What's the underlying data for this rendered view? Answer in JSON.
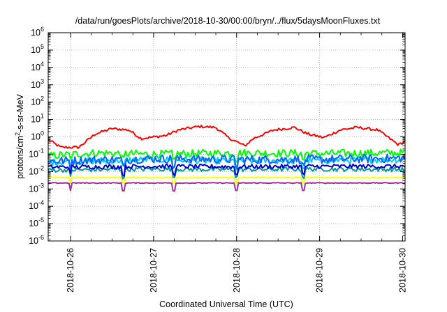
{
  "chart_data": {
    "type": "line",
    "title": "/data/run/goesPlots/archive/2018-10-30/00:00/bryn/../flux/5daysMoonFluxes.txt",
    "xlabel": "Coordinated Universal Time (UTC)",
    "ylabel": {
      "base": "protons/cm",
      "sup": "2",
      "rest": "-s-sr-MeV"
    },
    "x_ticks": [
      "2018-10-26",
      "2018-10-27",
      "2018-10-28",
      "2018-10-29",
      "2018-10-30"
    ],
    "x_range_days": [
      -0.27,
      4.03
    ],
    "y_scale": "log",
    "ylim": [
      1e-06,
      1000000.0
    ],
    "y_ticks": [
      {
        "exp": "-6",
        "value": 1e-06
      },
      {
        "exp": "-5",
        "value": 1e-05
      },
      {
        "exp": "-4",
        "value": 0.0001
      },
      {
        "exp": "-3",
        "value": 0.001
      },
      {
        "exp": "-2",
        "value": 0.01
      },
      {
        "exp": "-1",
        "value": 0.1
      },
      {
        "exp": "0",
        "value": 1
      },
      {
        "exp": "1",
        "value": 10
      },
      {
        "exp": "2",
        "value": 100
      },
      {
        "exp": "3",
        "value": 1000
      },
      {
        "exp": "4",
        "value": 10000
      },
      {
        "exp": "5",
        "value": 100000
      },
      {
        "exp": "6",
        "value": 1000000
      }
    ],
    "grid": true,
    "dips_days": [
      -0.52,
      0.0,
      0.64,
      1.25,
      2.0,
      2.8
    ],
    "series": [
      {
        "color": "#ff0000",
        "base": [
          [
            -0.27,
            0.7
          ],
          [
            -0.12,
            0.25
          ],
          [
            0.1,
            0.25
          ],
          [
            0.3,
            1.5
          ],
          [
            0.5,
            3.0
          ],
          [
            0.7,
            2.5
          ],
          [
            0.85,
            0.8
          ],
          [
            1.15,
            1.2
          ],
          [
            1.3,
            2.5
          ],
          [
            1.55,
            4.0
          ],
          [
            1.75,
            3.5
          ],
          [
            1.9,
            0.9
          ],
          [
            2.1,
            0.3
          ],
          [
            2.2,
            0.8
          ],
          [
            2.45,
            2.5
          ],
          [
            2.7,
            3.5
          ],
          [
            2.85,
            1.5
          ],
          [
            3.05,
            0.9
          ],
          [
            3.25,
            2.5
          ],
          [
            3.45,
            3.5
          ],
          [
            3.7,
            2.5
          ],
          [
            3.95,
            0.35
          ],
          [
            4.2,
            1.5
          ],
          [
            4.45,
            5.5
          ],
          [
            4.55,
            3.5
          ],
          [
            4.65,
            2.5
          ],
          [
            4.75,
            2.5
          ]
        ],
        "jitter": 0.15,
        "dip": 0
      },
      {
        "color": "#00ff00",
        "base": [
          [
            -0.27,
            0.08
          ],
          [
            0.3,
            0.12
          ],
          [
            1.0,
            0.1
          ],
          [
            2.0,
            0.12
          ],
          [
            3.0,
            0.11
          ],
          [
            4.03,
            0.12
          ]
        ],
        "jitter": 0.45,
        "dip": 0.35
      },
      {
        "color": "#00ccff",
        "base": [
          [
            -0.27,
            0.035
          ],
          [
            1.0,
            0.05
          ],
          [
            2.0,
            0.04
          ],
          [
            3.0,
            0.045
          ],
          [
            4.03,
            0.05
          ]
        ],
        "jitter": 0.4,
        "dip": 0.4
      },
      {
        "color": "#0066ff",
        "base": [
          [
            -0.27,
            0.04
          ],
          [
            1.0,
            0.055
          ],
          [
            2.0,
            0.05
          ],
          [
            3.0,
            0.05
          ],
          [
            4.03,
            0.06
          ]
        ],
        "jitter": 0.5,
        "dip": 0.4
      },
      {
        "color": "#009999",
        "base": [
          [
            -0.27,
            0.012
          ],
          [
            1.0,
            0.014
          ],
          [
            2.0,
            0.013
          ],
          [
            3.0,
            0.014
          ],
          [
            4.03,
            0.013
          ]
        ],
        "jitter": 0.25,
        "dip": 0.45
      },
      {
        "color": "#0000cc",
        "base": [
          [
            -0.27,
            0.018
          ],
          [
            1.0,
            0.02
          ],
          [
            2.0,
            0.019
          ],
          [
            3.0,
            0.02
          ],
          [
            4.03,
            0.02
          ]
        ],
        "jitter": 0.25,
        "dip": 0.45
      },
      {
        "color": "#ffff00",
        "base": [
          [
            -0.27,
            0.0045
          ],
          [
            4.03,
            0.0045
          ]
        ],
        "jitter": 0.05,
        "dip": 0.3
      },
      {
        "color": "#993399",
        "base": [
          [
            -0.27,
            0.0022
          ],
          [
            4.03,
            0.0022
          ]
        ],
        "jitter": 0.05,
        "dip": 0.45
      }
    ]
  }
}
